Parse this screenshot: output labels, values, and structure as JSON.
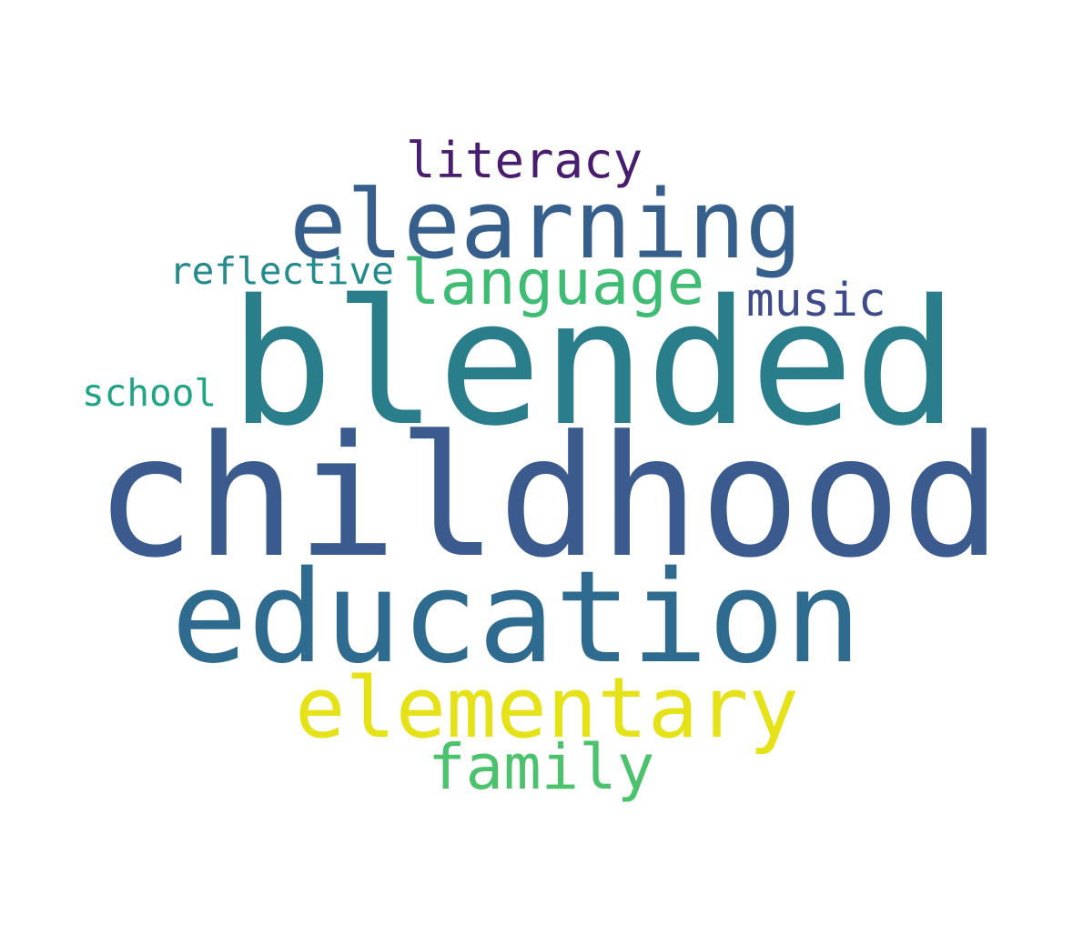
{
  "words": [
    {
      "text": "childhood",
      "color": "#3b5b8f"
    },
    {
      "text": "blended",
      "color": "#2a7e8c"
    },
    {
      "text": "education",
      "color": "#2e6b8e"
    },
    {
      "text": "elearning",
      "color": "#375f8c"
    },
    {
      "text": "elementary",
      "color": "#e6e21a"
    },
    {
      "text": "language",
      "color": "#3fbc73"
    },
    {
      "text": "family",
      "color": "#4cc26c"
    },
    {
      "text": "literacy",
      "color": "#481c6e"
    },
    {
      "text": "music",
      "color": "#3e4a89"
    },
    {
      "text": "reflective",
      "color": "#238a8d"
    },
    {
      "text": "school",
      "color": "#20a486"
    }
  ]
}
